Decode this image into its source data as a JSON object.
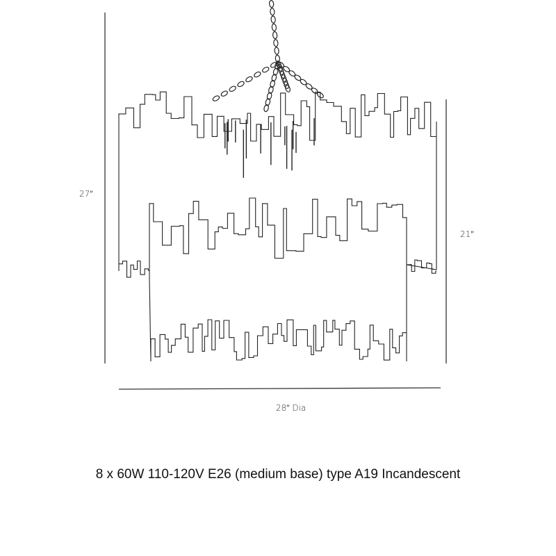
{
  "dimensions": {
    "height_overall": "27″",
    "height_body": "21″",
    "diameter": "28″ Dia"
  },
  "caption": "8 x 60W 110-120V E26 (medium base) type A19 Incandescent",
  "colors": {
    "line": "#222222",
    "text": "#111111"
  }
}
